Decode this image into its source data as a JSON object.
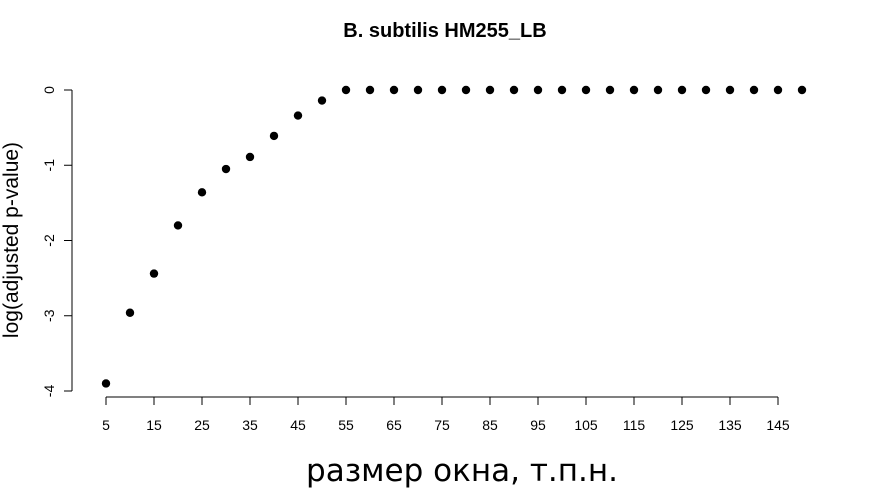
{
  "chart_data": {
    "type": "scatter",
    "title": "B. subtilis HM255_LB",
    "xlabel": "размер окна, т.п.н.",
    "ylabel": "log(adjusted p-value)",
    "x": [
      5,
      10,
      15,
      20,
      25,
      30,
      35,
      40,
      45,
      50,
      55,
      60,
      65,
      70,
      75,
      80,
      85,
      90,
      95,
      100,
      105,
      110,
      115,
      120,
      125,
      130,
      135,
      140,
      145,
      150
    ],
    "y": [
      -3.9,
      -2.96,
      -2.44,
      -1.8,
      -1.36,
      -1.05,
      -0.89,
      -0.61,
      -0.34,
      -0.14,
      0,
      0,
      0,
      0,
      0,
      0,
      0,
      0,
      0,
      0,
      0,
      0,
      0,
      0,
      0,
      0,
      0,
      0,
      0,
      0
    ],
    "xticks": [
      5,
      15,
      25,
      35,
      45,
      55,
      65,
      75,
      85,
      95,
      105,
      115,
      125,
      135,
      145
    ],
    "yticks": [
      0,
      -1,
      -2,
      -3,
      -4
    ],
    "xlim": [
      5,
      150
    ],
    "ylim": [
      -4,
      0
    ],
    "grid": false,
    "point_color": "#000000"
  }
}
